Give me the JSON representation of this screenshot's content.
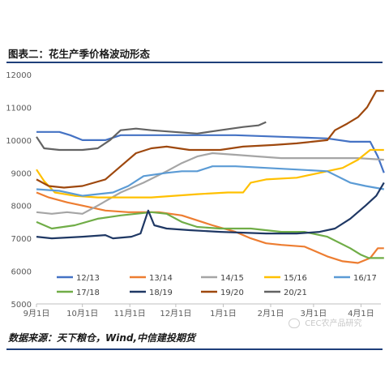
{
  "header": {
    "title": "图表二：花生产季价格波动形态"
  },
  "footer": {
    "source": "数据来源：天下粮仓，Wind,中信建投期货"
  },
  "watermark": {
    "text": "CEC农产品研究",
    "icon": "wechat-icon"
  },
  "chart_data": {
    "type": "line",
    "ylim": [
      5000,
      12000
    ],
    "yticks": [
      5000,
      6000,
      7000,
      8000,
      9000,
      10000,
      11000,
      12000
    ],
    "xlim": [
      0,
      225
    ],
    "xticks": [
      {
        "label": "9月1日",
        "x": 0
      },
      {
        "label": "10月1日",
        "x": 30
      },
      {
        "label": "11月1日",
        "x": 61
      },
      {
        "label": "12月1日",
        "x": 91
      },
      {
        "label": "1月1日",
        "x": 122
      },
      {
        "label": "2月1日",
        "x": 153
      },
      {
        "label": "3月1日",
        "x": 181
      },
      {
        "label": "4月1日",
        "x": 212
      }
    ],
    "legend_position": "bottom",
    "series": [
      {
        "name": "12/13",
        "color": "#4472c4",
        "points": [
          [
            0,
            10250
          ],
          [
            15,
            10250
          ],
          [
            22,
            10150
          ],
          [
            30,
            10000
          ],
          [
            45,
            10000
          ],
          [
            55,
            10150
          ],
          [
            80,
            10150
          ],
          [
            105,
            10150
          ],
          [
            130,
            10150
          ],
          [
            160,
            10100
          ],
          [
            190,
            10050
          ],
          [
            205,
            9950
          ],
          [
            218,
            9950
          ],
          [
            223,
            9500
          ],
          [
            227,
            9000
          ]
        ]
      },
      {
        "name": "13/14",
        "color": "#ed7d31",
        "points": [
          [
            0,
            8400
          ],
          [
            8,
            8250
          ],
          [
            20,
            8100
          ],
          [
            30,
            8000
          ],
          [
            45,
            7850
          ],
          [
            60,
            7800
          ],
          [
            80,
            7800
          ],
          [
            95,
            7700
          ],
          [
            115,
            7400
          ],
          [
            130,
            7200
          ],
          [
            140,
            7000
          ],
          [
            150,
            6850
          ],
          [
            160,
            6800
          ],
          [
            175,
            6750
          ],
          [
            190,
            6450
          ],
          [
            200,
            6300
          ],
          [
            210,
            6250
          ],
          [
            218,
            6400
          ],
          [
            223,
            6700
          ],
          [
            227,
            6700
          ]
        ]
      },
      {
        "name": "14/15",
        "color": "#a5a5a5",
        "points": [
          [
            0,
            7800
          ],
          [
            10,
            7750
          ],
          [
            20,
            7800
          ],
          [
            30,
            7750
          ],
          [
            40,
            8000
          ],
          [
            55,
            8400
          ],
          [
            70,
            8700
          ],
          [
            85,
            9050
          ],
          [
            95,
            9300
          ],
          [
            105,
            9500
          ],
          [
            115,
            9600
          ],
          [
            130,
            9550
          ],
          [
            145,
            9500
          ],
          [
            160,
            9450
          ],
          [
            190,
            9450
          ],
          [
            210,
            9450
          ],
          [
            227,
            9400
          ]
        ]
      },
      {
        "name": "15/16",
        "color": "#ffc000",
        "points": [
          [
            0,
            9100
          ],
          [
            5,
            8750
          ],
          [
            12,
            8400
          ],
          [
            25,
            8300
          ],
          [
            40,
            8250
          ],
          [
            60,
            8250
          ],
          [
            75,
            8250
          ],
          [
            90,
            8300
          ],
          [
            105,
            8350
          ],
          [
            125,
            8400
          ],
          [
            135,
            8400
          ],
          [
            140,
            8700
          ],
          [
            150,
            8800
          ],
          [
            170,
            8850
          ],
          [
            185,
            9000
          ],
          [
            195,
            9100
          ],
          [
            200,
            9150
          ],
          [
            210,
            9400
          ],
          [
            218,
            9700
          ],
          [
            227,
            9700
          ]
        ]
      },
      {
        "name": "16/17",
        "color": "#5b9bd5",
        "points": [
          [
            0,
            8500
          ],
          [
            15,
            8450
          ],
          [
            30,
            8300
          ],
          [
            50,
            8400
          ],
          [
            60,
            8600
          ],
          [
            70,
            8900
          ],
          [
            85,
            9000
          ],
          [
            95,
            9050
          ],
          [
            105,
            9050
          ],
          [
            115,
            9200
          ],
          [
            130,
            9200
          ],
          [
            150,
            9150
          ],
          [
            170,
            9100
          ],
          [
            190,
            9050
          ],
          [
            205,
            8700
          ],
          [
            215,
            8600
          ],
          [
            227,
            8500
          ]
        ]
      },
      {
        "name": "17/18",
        "color": "#70ad47",
        "points": [
          [
            0,
            7500
          ],
          [
            10,
            7300
          ],
          [
            25,
            7400
          ],
          [
            40,
            7600
          ],
          [
            55,
            7700
          ],
          [
            75,
            7800
          ],
          [
            85,
            7750
          ],
          [
            95,
            7500
          ],
          [
            105,
            7350
          ],
          [
            120,
            7300
          ],
          [
            140,
            7300
          ],
          [
            160,
            7200
          ],
          [
            175,
            7200
          ],
          [
            190,
            7050
          ],
          [
            205,
            6700
          ],
          [
            212,
            6500
          ],
          [
            217,
            6400
          ],
          [
            227,
            6400
          ]
        ]
      },
      {
        "name": "18/19",
        "color": "#1f3864",
        "points": [
          [
            0,
            7050
          ],
          [
            10,
            7000
          ],
          [
            30,
            7050
          ],
          [
            45,
            7100
          ],
          [
            50,
            7000
          ],
          [
            62,
            7050
          ],
          [
            68,
            7150
          ],
          [
            73,
            7850
          ],
          [
            77,
            7400
          ],
          [
            85,
            7300
          ],
          [
            100,
            7250
          ],
          [
            120,
            7200
          ],
          [
            150,
            7150
          ],
          [
            170,
            7150
          ],
          [
            185,
            7200
          ],
          [
            195,
            7300
          ],
          [
            205,
            7600
          ],
          [
            215,
            8000
          ],
          [
            222,
            8300
          ],
          [
            227,
            8700
          ]
        ]
      },
      {
        "name": "19/20",
        "color": "#9e480e",
        "points": [
          [
            0,
            8800
          ],
          [
            8,
            8600
          ],
          [
            18,
            8550
          ],
          [
            30,
            8600
          ],
          [
            45,
            8800
          ],
          [
            55,
            9200
          ],
          [
            65,
            9600
          ],
          [
            75,
            9750
          ],
          [
            85,
            9800
          ],
          [
            100,
            9700
          ],
          [
            120,
            9700
          ],
          [
            135,
            9800
          ],
          [
            155,
            9850
          ],
          [
            170,
            9900
          ],
          [
            180,
            9950
          ],
          [
            190,
            10000
          ],
          [
            195,
            10300
          ],
          [
            203,
            10500
          ],
          [
            210,
            10700
          ],
          [
            216,
            11000
          ],
          [
            222,
            11500
          ],
          [
            227,
            11500
          ]
        ]
      },
      {
        "name": "20/21",
        "color": "#636363",
        "points": [
          [
            0,
            10100
          ],
          [
            5,
            9750
          ],
          [
            15,
            9700
          ],
          [
            30,
            9700
          ],
          [
            40,
            9750
          ],
          [
            48,
            10000
          ],
          [
            55,
            10300
          ],
          [
            65,
            10350
          ],
          [
            75,
            10300
          ],
          [
            90,
            10250
          ],
          [
            105,
            10200
          ],
          [
            120,
            10300
          ],
          [
            135,
            10400
          ],
          [
            145,
            10450
          ],
          [
            150,
            10550
          ]
        ]
      }
    ]
  }
}
